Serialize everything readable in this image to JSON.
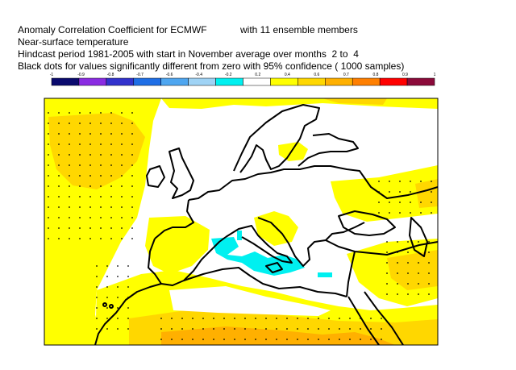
{
  "header": {
    "line1": "Anomaly Correlation Coefficient for ECMWF",
    "line1_members": "with 11 ensemble members",
    "line2": "Near-surface temperature",
    "line3": "Hindcast period 1981-2005 with start in November average over months  2 to  4",
    "line4": "Black dots for values significantly different from zero with 95% confidence ( 1000 samples)"
  },
  "legend": {
    "tick_labels": [
      "-1",
      "-0.9",
      "-0.8",
      "-0.7",
      "-0.6",
      "-0.4",
      "-0.2",
      "0.2",
      "0.4",
      "0.6",
      "0.7",
      "0.8",
      "0.9",
      "1"
    ],
    "colors": [
      "#0a0a6e",
      "#8a2be2",
      "#3232cd",
      "#1e6ee6",
      "#4ea6f0",
      "#9fd3f5",
      "#00f0f0",
      "#ffffff",
      "#ffff00",
      "#ffd700",
      "#ffb000",
      "#ff7f00",
      "#ff0000",
      "#8b0a3a"
    ]
  },
  "map": {
    "region": "Europe / North Africa",
    "colors": {
      "sea": "#ffffff",
      "weak_positive": "#ffff00",
      "moderate_positive": "#ffd700",
      "strong_positive": "#ffb000",
      "negative": "#00f0f0",
      "coast": "#000000",
      "dot": "#000000"
    }
  }
}
